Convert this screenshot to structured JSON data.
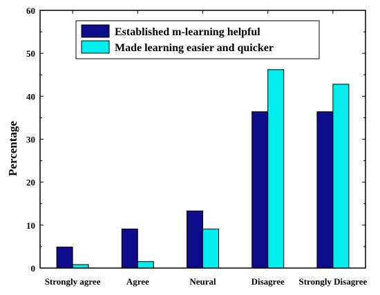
{
  "chart_data": {
    "type": "bar",
    "categories": [
      "Strongly agree",
      "Agree",
      "Neural",
      "Disagree",
      "Strongly Disagree"
    ],
    "series": [
      {
        "name": "Established m-learning helpful",
        "color": "#0d0d8c",
        "values": [
          4.9,
          9.1,
          13.3,
          36.4,
          36.4
        ]
      },
      {
        "name": "Made learning easier and quicker",
        "color": "#00eeee",
        "values": [
          0.8,
          1.5,
          9.1,
          46.2,
          42.8
        ]
      }
    ],
    "title": "",
    "xlabel": "",
    "ylabel": "Percentage",
    "ylim": [
      0,
      60
    ],
    "yticks": [
      0,
      10,
      20,
      30,
      40,
      50,
      60
    ],
    "grid": false,
    "legend_position": "top-center"
  }
}
